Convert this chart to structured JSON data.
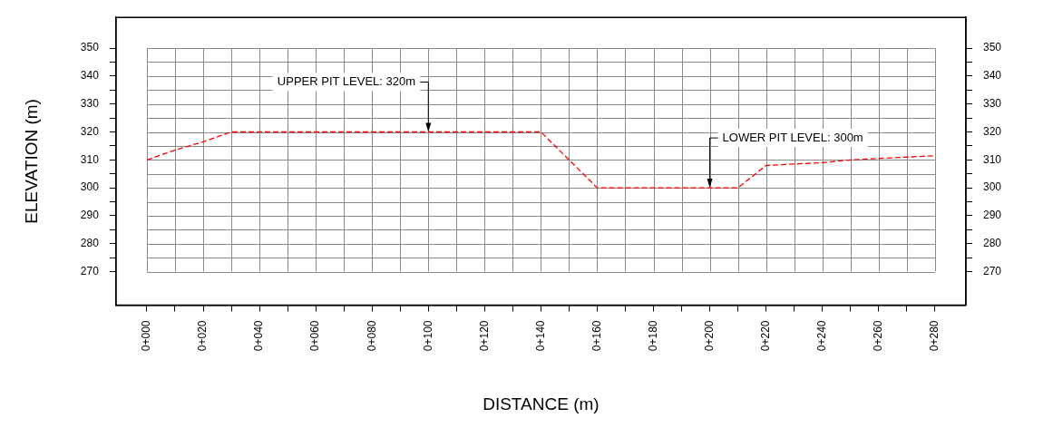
{
  "chart_data": {
    "type": "line",
    "xlabel": "DISTANCE (m)",
    "ylabel": "ELEVATION (m)",
    "categories": [
      "0+000",
      null,
      "0+020",
      null,
      "0+040",
      null,
      "0+060",
      null,
      "0+080",
      null,
      "0+100",
      null,
      "0+120",
      null,
      "0+140",
      null,
      "0+160",
      null,
      "0+180",
      null,
      "0+200",
      null,
      "0+220",
      null,
      "0+240",
      null,
      "0+260",
      null,
      "0+280"
    ],
    "ylim": [
      258,
      361
    ],
    "y2lim": [
      258,
      361
    ],
    "yticks": [
      270,
      {
        "value": 275,
        "label": null
      },
      280,
      {
        "value": 285,
        "label": null
      },
      290,
      {
        "value": 295,
        "label": null
      },
      300,
      {
        "value": 305,
        "label": null
      },
      310,
      {
        "value": 315,
        "label": null
      },
      320,
      {
        "value": 325,
        "label": null
      },
      330,
      {
        "value": 335,
        "label": null
      },
      340,
      {
        "value": 345,
        "label": null
      },
      350
    ],
    "y2ticks": [
      270,
      {
        "value": 275,
        "label": null
      },
      280,
      {
        "value": 285,
        "label": null
      },
      290,
      {
        "value": 295,
        "label": null
      },
      300,
      {
        "value": 305,
        "label": null
      },
      310,
      {
        "value": 315,
        "label": null
      },
      320,
      {
        "value": 325,
        "label": null
      },
      330,
      {
        "value": 335,
        "label": null
      },
      340,
      {
        "value": 345,
        "label": null
      },
      350
    ],
    "grid": true,
    "marker": "none",
    "line_style": "dashed",
    "series": [
      {
        "color": "#ff0000",
        "values": [
          310,
          313.5,
          316.5,
          320,
          320,
          320,
          320,
          320,
          320,
          320,
          320,
          320,
          320,
          320,
          320,
          310,
          300,
          300,
          300,
          300,
          300,
          300,
          308,
          308.5,
          309,
          310,
          310.5,
          311,
          311.5
        ]
      }
    ],
    "annotations": [
      {
        "text": "UPPER PIT LEVEL: 320m",
        "x": "0+100",
        "y": 320
      },
      {
        "text": "LOWER PIT LEVEL: 300m",
        "x": "0+200",
        "y": 300
      }
    ]
  }
}
